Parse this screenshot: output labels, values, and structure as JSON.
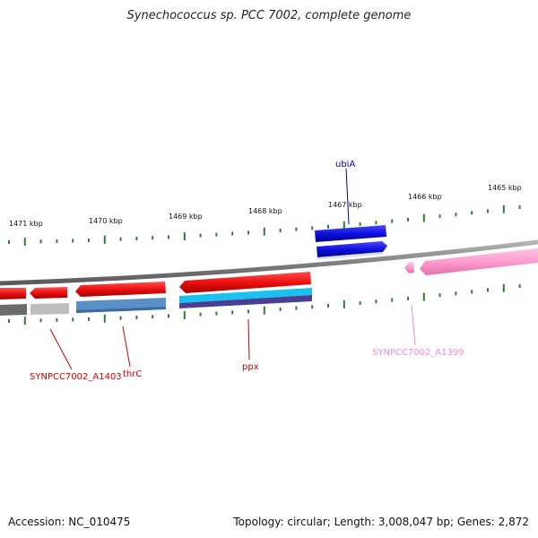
{
  "title": "Synechococcus sp. PCC 7002, complete genome",
  "footer": {
    "accession": "Accession: NC_010475",
    "summary": "Topology: circular; Length: 3,008,047 bp; Genes: 2,872"
  },
  "axis_labels": [
    "1471 kbp",
    "1470 kbp",
    "1469 kbp",
    "1468 kbp",
    "1467 kbp",
    "1466 kbp",
    "1465 kbp"
  ],
  "gene_labels": {
    "ubiA": "ubiA",
    "synpcc7002_a1403": "SYNPCC7002_A1403",
    "thrC": "thrC",
    "ppx": "ppx",
    "synpcc7002_a1399": "SYNPCC7002_A1399"
  },
  "colors": {
    "backbone": "#8a8a8a",
    "tick": "#2e7d32",
    "forward_gene": "#1010e0",
    "reverse_gene": "#e01010",
    "pink_gene": "#ff9ccf",
    "label_red": "#cc0000",
    "label_blue": "#0000aa",
    "label_pink": "#ff88c0",
    "cds_blue": "#5a8fc8",
    "cds_cyan": "#19c0f0",
    "cds_purple": "#5a4aa0",
    "cds_gray_dark": "#666666",
    "cds_gray_light": "#bdbdbd"
  }
}
